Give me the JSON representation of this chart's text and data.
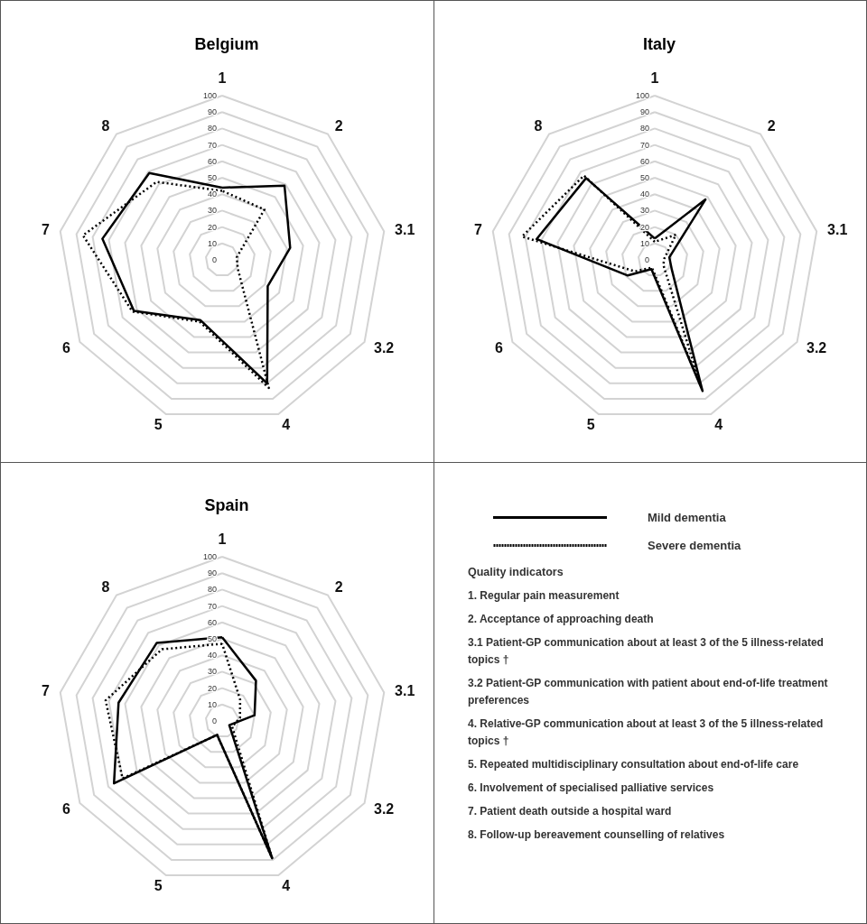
{
  "chart_data": [
    {
      "type": "radar",
      "title": "Belgium",
      "categories": [
        "1",
        "2",
        "3.1",
        "3.2",
        "4",
        "5",
        "6",
        "7",
        "8"
      ],
      "ylim": [
        0,
        100
      ],
      "yticks": [
        0,
        10,
        20,
        30,
        40,
        50,
        60,
        70,
        80,
        90,
        100
      ],
      "grid": true,
      "marker": "none",
      "series": [
        {
          "color": "#000000",
          "line_style": "solid",
          "values": [
            44,
            59,
            42,
            32,
            80,
            39,
            62,
            74,
            69
          ]
        },
        {
          "color": "#000000",
          "line_style": "dotted",
          "values": [
            42,
            40,
            9,
            11,
            83,
            40,
            63,
            86,
            62
          ]
        }
      ]
    },
    {
      "type": "radar",
      "title": "Italy",
      "categories": [
        "1",
        "2",
        "3.1",
        "3.2",
        "4",
        "5",
        "6",
        "7",
        "8"
      ],
      "ylim": [
        0,
        100
      ],
      "yticks": [
        0,
        10,
        20,
        30,
        40,
        50,
        60,
        70,
        80,
        90,
        100
      ],
      "grid": true,
      "marker": "none",
      "series": [
        {
          "color": "#000000",
          "line_style": "solid",
          "values": [
            13,
            48,
            9,
            12,
            85,
            6,
            19,
            73,
            65
          ]
        },
        {
          "color": "#000000",
          "line_style": "dotted",
          "values": [
            11,
            20,
            6,
            6,
            81,
            5,
            14,
            82,
            67
          ]
        }
      ]
    },
    {
      "type": "radar",
      "title": "Spain",
      "categories": [
        "1",
        "2",
        "3.1",
        "3.2",
        "4",
        "5",
        "6",
        "7",
        "8"
      ],
      "ylim": [
        0,
        100
      ],
      "yticks": [
        0,
        10,
        20,
        30,
        40,
        50,
        60,
        70,
        80,
        90,
        100
      ],
      "grid": true,
      "marker": "none",
      "legend": "right",
      "series": [
        {
          "name": "Mild dementia",
          "color": "#000000",
          "line_style": "solid",
          "values": [
            51,
            32,
            20,
            5,
            89,
            9,
            76,
            64,
            62
          ]
        },
        {
          "name": "Severe dementia",
          "color": "#000000",
          "line_style": "dotted",
          "values": [
            47,
            17,
            11,
            7,
            89,
            9,
            70,
            72,
            57
          ]
        }
      ]
    },
    {
      "type": "other",
      "title": "Quality indicators",
      "annotations": [
        "1. Regular pain measurement",
        "2. Acceptance of approaching death",
        "3.1 Patient-GP communication about at least 3 of the 5 illness-related topics †",
        "3.2 Patient-GP communication with patient about end-of-life treatment preferences",
        "4. Relative-GP communication about at least 3 of the 5 illness-related topics †",
        "5. Repeated multidisciplinary consultation about end-of-life care",
        "6. Involvement of specialised palliative services",
        "7. Patient death outside a hospital ward",
        "8. Follow-up bereavement counselling of relatives"
      ]
    }
  ]
}
